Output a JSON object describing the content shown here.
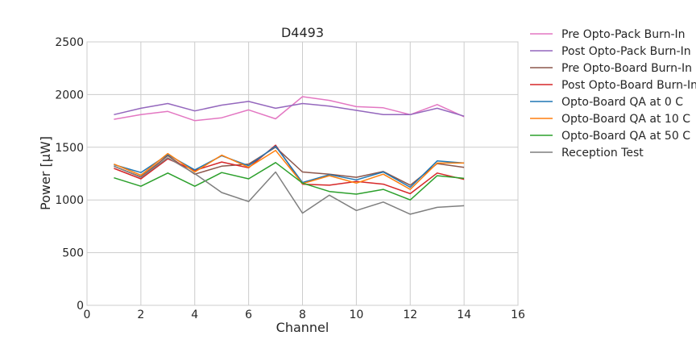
{
  "chart_data": {
    "type": "line",
    "title": "D4493",
    "xlabel": "Channel",
    "ylabel": "Power [μW]",
    "xlim": [
      0,
      16
    ],
    "ylim": [
      0,
      2500
    ],
    "xticks": [
      "0",
      "2",
      "4",
      "6",
      "8",
      "10",
      "12",
      "14",
      "16"
    ],
    "yticks": [
      "0",
      "500",
      "1000",
      "1500",
      "2000",
      "2500"
    ],
    "grid": true,
    "legend_position": "outside-right",
    "x": [
      1,
      2,
      3,
      4,
      5,
      6,
      7,
      8,
      9,
      10,
      11,
      12,
      13,
      14
    ],
    "series": [
      {
        "name": "Pre Opto-Pack Burn-In",
        "color": "#e377c2",
        "values": [
          1765,
          1810,
          1840,
          1752,
          1780,
          1855,
          1770,
          1980,
          1945,
          1885,
          1875,
          1810,
          1905,
          1790
        ]
      },
      {
        "name": "Post Opto-Pack Burn-In",
        "color": "#9467bd",
        "values": [
          1810,
          1870,
          1915,
          1845,
          1900,
          1935,
          1870,
          1915,
          1890,
          1850,
          1810,
          1810,
          1870,
          1795
        ]
      },
      {
        "name": "Pre Opto-Board Burn-In",
        "color": "#8c564b",
        "values": [
          1320,
          1220,
          1420,
          1245,
          1320,
          1340,
          1500,
          1265,
          1245,
          1215,
          1270,
          1140,
          1345,
          1310
        ]
      },
      {
        "name": "Post Opto-Board Burn-In",
        "color": "#d62728",
        "values": [
          1300,
          1200,
          1390,
          1280,
          1360,
          1305,
          1520,
          1150,
          1140,
          1175,
          1150,
          1060,
          1255,
          1195
        ]
      },
      {
        "name": "Opto-Board QA at 0 C",
        "color": "#1f77b4",
        "values": [
          1335,
          1260,
          1430,
          1285,
          1420,
          1325,
          1510,
          1165,
          1240,
          1190,
          1265,
          1120,
          1370,
          1350
        ]
      },
      {
        "name": "Opto-Board QA at 10 C",
        "color": "#ff7f0e",
        "values": [
          1340,
          1235,
          1440,
          1265,
          1425,
          1310,
          1470,
          1155,
          1230,
          1160,
          1245,
          1100,
          1350,
          1350
        ]
      },
      {
        "name": "Opto-Board QA at 50 C",
        "color": "#2ca02c",
        "values": [
          1210,
          1130,
          1255,
          1130,
          1260,
          1200,
          1355,
          1160,
          1080,
          1055,
          1100,
          1000,
          1230,
          1205
        ]
      },
      {
        "name": "Reception Test",
        "color": "#7f7f7f",
        "values": [
          1320,
          1215,
          1400,
          1250,
          1070,
          985,
          1265,
          875,
          1045,
          900,
          980,
          865,
          930,
          945
        ]
      }
    ]
  }
}
